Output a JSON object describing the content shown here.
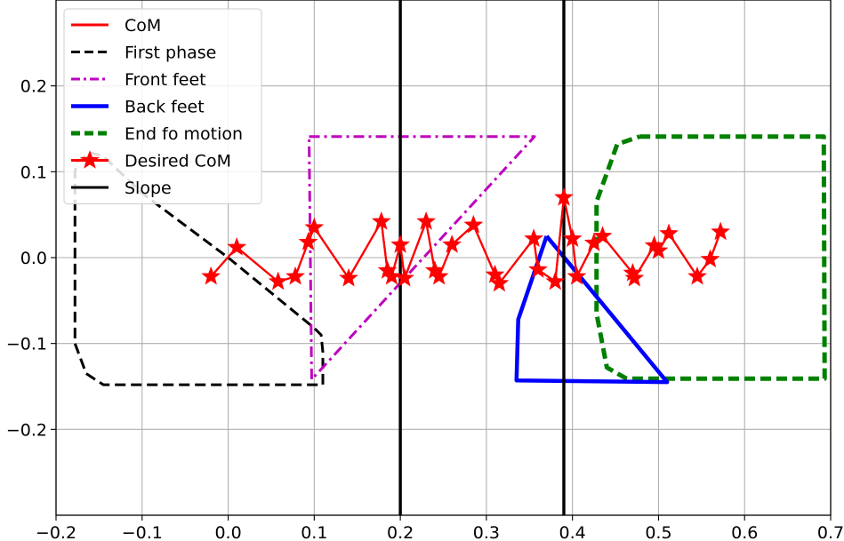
{
  "chart_data": {
    "type": "line",
    "title": "",
    "xlabel": "",
    "ylabel": "",
    "xlim": [
      -0.2,
      0.7
    ],
    "ylim": [
      -0.3,
      0.3
    ],
    "xticks": [
      -0.2,
      -0.1,
      0.0,
      0.1,
      0.2,
      0.3,
      0.4,
      0.5,
      0.6,
      0.7
    ],
    "xtick_labels": [
      "−0.2",
      "−0.1",
      "0.0",
      "0.1",
      "0.2",
      "0.3",
      "0.4",
      "0.5",
      "0.6",
      "0.7"
    ],
    "yticks": [
      -0.2,
      -0.1,
      0.0,
      0.1,
      0.2
    ],
    "ytick_labels": [
      "−0.2",
      "−0.1",
      "0.0",
      "0.1",
      "0.2"
    ],
    "grid": true,
    "legend_position": "top-left",
    "series": [
      {
        "name": "CoM",
        "color": "#ff0000",
        "style": "solid",
        "marker": "none",
        "x": [
          -0.02,
          0.01,
          0.058,
          0.078,
          0.093,
          0.1,
          0.14,
          0.178,
          0.185,
          0.19,
          0.2,
          0.205,
          0.23,
          0.24,
          0.245,
          0.26,
          0.285,
          0.31,
          0.315,
          0.355,
          0.36,
          0.38,
          0.39,
          0.4,
          0.405,
          0.425,
          0.435,
          0.47,
          0.472,
          0.495,
          0.5,
          0.512,
          0.545,
          0.56,
          0.572
        ],
        "y": [
          -0.022,
          0.012,
          -0.028,
          -0.022,
          0.018,
          0.035,
          -0.024,
          0.042,
          -0.015,
          -0.022,
          0.015,
          -0.024,
          0.042,
          -0.015,
          -0.022,
          0.015,
          0.038,
          -0.02,
          -0.03,
          0.022,
          -0.014,
          -0.028,
          0.07,
          0.022,
          -0.022,
          0.017,
          0.025,
          -0.018,
          -0.024,
          0.014,
          0.008,
          0.028,
          -0.022,
          -0.002,
          0.03
        ]
      },
      {
        "name": "First phase",
        "color": "#000000",
        "style": "dashed",
        "marker": "none",
        "x": [
          0.0,
          0.1,
          0.108,
          0.11,
          0.11,
          -0.145,
          -0.165,
          -0.178,
          -0.178,
          -0.175,
          -0.16,
          -0.145,
          -0.1,
          0.0
        ],
        "y": [
          0.0,
          -0.082,
          -0.09,
          -0.11,
          -0.148,
          -0.148,
          -0.135,
          -0.1,
          0.1,
          0.112,
          0.122,
          0.118,
          0.075,
          0.0
        ]
      },
      {
        "name": "Front feet",
        "color": "#bf00bf",
        "style": "dashdot",
        "marker": "none",
        "x": [
          0.094,
          0.356,
          0.097,
          0.094
        ],
        "y": [
          0.141,
          0.141,
          -0.142,
          0.141
        ]
      },
      {
        "name": "Back feet",
        "color": "#0000ff",
        "style": "solid",
        "marker": "none",
        "x": [
          0.37,
          0.51,
          0.335,
          0.337,
          0.37
        ],
        "y": [
          0.025,
          -0.145,
          -0.143,
          -0.072,
          0.025
        ]
      },
      {
        "name": "End fo motion",
        "color": "#008000",
        "style": "dashed",
        "marker": "none",
        "x": [
          0.478,
          0.692,
          0.693,
          0.463,
          0.44,
          0.428,
          0.428,
          0.452,
          0.478
        ],
        "y": [
          0.141,
          0.141,
          -0.141,
          -0.141,
          -0.128,
          -0.065,
          0.065,
          0.132,
          0.141
        ]
      },
      {
        "name": "Desired CoM",
        "color": "#ff0000",
        "style": "solid",
        "marker": "star",
        "x": [
          -0.02,
          0.01,
          0.058,
          0.078,
          0.093,
          0.1,
          0.14,
          0.178,
          0.185,
          0.19,
          0.2,
          0.205,
          0.23,
          0.24,
          0.245,
          0.26,
          0.285,
          0.31,
          0.315,
          0.355,
          0.36,
          0.38,
          0.39,
          0.4,
          0.405,
          0.425,
          0.435,
          0.47,
          0.472,
          0.495,
          0.5,
          0.512,
          0.545,
          0.56,
          0.572
        ],
        "y": [
          -0.022,
          0.012,
          -0.028,
          -0.022,
          0.018,
          0.035,
          -0.024,
          0.042,
          -0.015,
          -0.022,
          0.015,
          -0.024,
          0.042,
          -0.015,
          -0.022,
          0.015,
          0.038,
          -0.02,
          -0.03,
          0.022,
          -0.014,
          -0.028,
          0.07,
          0.022,
          -0.022,
          0.017,
          0.025,
          -0.018,
          -0.024,
          0.014,
          0.008,
          0.028,
          -0.022,
          -0.002,
          0.03
        ]
      },
      {
        "name": "Slope",
        "color": "#000000",
        "style": "solid",
        "marker": "none",
        "vlines": [
          0.2,
          0.39
        ]
      }
    ]
  }
}
